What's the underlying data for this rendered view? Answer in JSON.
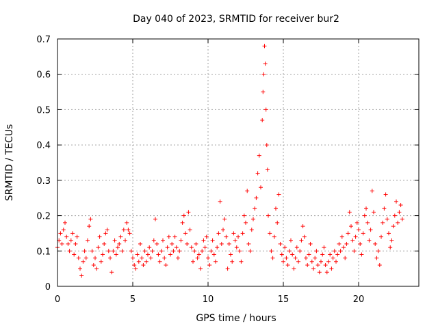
{
  "chart_data": {
    "type": "scatter",
    "title": "Day 040 of 2023, SRMTID for receiver bur2",
    "xlabel": "GPS time / hours",
    "ylabel": "SRMTID / TECUs",
    "xlim": [
      0,
      24
    ],
    "ylim": [
      0,
      0.7
    ],
    "xticks": [
      0,
      5,
      10,
      15,
      20
    ],
    "yticks": [
      0,
      0.1,
      0.2,
      0.3,
      0.4,
      0.5,
      0.6,
      0.7
    ],
    "xtick_labels": [
      "0",
      "5",
      "10",
      "15",
      "20"
    ],
    "ytick_labels": [
      "0",
      "0.1",
      "0.2",
      "0.3",
      "0.4",
      "0.5",
      "0.6",
      "0.7"
    ],
    "grid": true,
    "marker": "+",
    "color": "#ff0000",
    "series": [
      {
        "name": "SRMTID",
        "points": [
          [
            0.0,
            0.11
          ],
          [
            0.1,
            0.13
          ],
          [
            0.2,
            0.15
          ],
          [
            0.3,
            0.12
          ],
          [
            0.4,
            0.16
          ],
          [
            0.5,
            0.18
          ],
          [
            0.6,
            0.14
          ],
          [
            0.7,
            0.12
          ],
          [
            0.8,
            0.1
          ],
          [
            0.9,
            0.13
          ],
          [
            1.0,
            0.15
          ],
          [
            1.1,
            0.09
          ],
          [
            1.2,
            0.12
          ],
          [
            1.3,
            0.14
          ],
          [
            1.4,
            0.08
          ],
          [
            1.5,
            0.05
          ],
          [
            1.6,
            0.03
          ],
          [
            1.7,
            0.07
          ],
          [
            1.8,
            0.1
          ],
          [
            1.9,
            0.08
          ],
          [
            2.0,
            0.13
          ],
          [
            2.1,
            0.17
          ],
          [
            2.2,
            0.19
          ],
          [
            2.3,
            0.1
          ],
          [
            2.4,
            0.06
          ],
          [
            2.5,
            0.08
          ],
          [
            2.6,
            0.05
          ],
          [
            2.7,
            0.11
          ],
          [
            2.8,
            0.14
          ],
          [
            2.9,
            0.07
          ],
          [
            3.0,
            0.09
          ],
          [
            3.1,
            0.12
          ],
          [
            3.2,
            0.15
          ],
          [
            3.3,
            0.16
          ],
          [
            3.4,
            0.1
          ],
          [
            3.5,
            0.08
          ],
          [
            3.6,
            0.04
          ],
          [
            3.7,
            0.1
          ],
          [
            3.8,
            0.13
          ],
          [
            3.9,
            0.09
          ],
          [
            4.0,
            0.11
          ],
          [
            4.1,
            0.12
          ],
          [
            4.2,
            0.14
          ],
          [
            4.3,
            0.1
          ],
          [
            4.4,
            0.16
          ],
          [
            4.5,
            0.13
          ],
          [
            4.6,
            0.18
          ],
          [
            4.7,
            0.16
          ],
          [
            4.8,
            0.15
          ],
          [
            4.9,
            0.1
          ],
          [
            5.0,
            0.08
          ],
          [
            5.1,
            0.06
          ],
          [
            5.2,
            0.05
          ],
          [
            5.3,
            0.09
          ],
          [
            5.4,
            0.07
          ],
          [
            5.5,
            0.12
          ],
          [
            5.6,
            0.08
          ],
          [
            5.7,
            0.06
          ],
          [
            5.8,
            0.1
          ],
          [
            5.9,
            0.07
          ],
          [
            6.0,
            0.09
          ],
          [
            6.1,
            0.11
          ],
          [
            6.2,
            0.08
          ],
          [
            6.3,
            0.1
          ],
          [
            6.4,
            0.13
          ],
          [
            6.5,
            0.19
          ],
          [
            6.6,
            0.12
          ],
          [
            6.7,
            0.09
          ],
          [
            6.8,
            0.07
          ],
          [
            6.9,
            0.1
          ],
          [
            7.0,
            0.13
          ],
          [
            7.1,
            0.08
          ],
          [
            7.2,
            0.06
          ],
          [
            7.3,
            0.11
          ],
          [
            7.4,
            0.14
          ],
          [
            7.5,
            0.09
          ],
          [
            7.6,
            0.12
          ],
          [
            7.7,
            0.1
          ],
          [
            7.8,
            0.14
          ],
          [
            7.9,
            0.11
          ],
          [
            8.0,
            0.08
          ],
          [
            8.1,
            0.1
          ],
          [
            8.2,
            0.13
          ],
          [
            8.3,
            0.18
          ],
          [
            8.4,
            0.2
          ],
          [
            8.5,
            0.15
          ],
          [
            8.6,
            0.12
          ],
          [
            8.7,
            0.21
          ],
          [
            8.8,
            0.16
          ],
          [
            8.9,
            0.11
          ],
          [
            9.0,
            0.07
          ],
          [
            9.1,
            0.1
          ],
          [
            9.2,
            0.12
          ],
          [
            9.3,
            0.08
          ],
          [
            9.4,
            0.09
          ],
          [
            9.5,
            0.05
          ],
          [
            9.6,
            0.1
          ],
          [
            9.7,
            0.13
          ],
          [
            9.8,
            0.11
          ],
          [
            9.9,
            0.14
          ],
          [
            10.0,
            0.08
          ],
          [
            10.1,
            0.06
          ],
          [
            10.2,
            0.1
          ],
          [
            10.3,
            0.13
          ],
          [
            10.4,
            0.09
          ],
          [
            10.5,
            0.07
          ],
          [
            10.6,
            0.11
          ],
          [
            10.7,
            0.15
          ],
          [
            10.8,
            0.24
          ],
          [
            10.9,
            0.12
          ],
          [
            11.0,
            0.16
          ],
          [
            11.1,
            0.19
          ],
          [
            11.2,
            0.14
          ],
          [
            11.3,
            0.05
          ],
          [
            11.4,
            0.12
          ],
          [
            11.5,
            0.09
          ],
          [
            11.6,
            0.07
          ],
          [
            11.7,
            0.15
          ],
          [
            11.8,
            0.13
          ],
          [
            11.9,
            0.11
          ],
          [
            12.0,
            0.14
          ],
          [
            12.1,
            0.1
          ],
          [
            12.2,
            0.07
          ],
          [
            12.3,
            0.15
          ],
          [
            12.4,
            0.2
          ],
          [
            12.5,
            0.18
          ],
          [
            12.6,
            0.27
          ],
          [
            12.7,
            0.12
          ],
          [
            12.8,
            0.1
          ],
          [
            12.9,
            0.16
          ],
          [
            13.0,
            0.19
          ],
          [
            13.1,
            0.22
          ],
          [
            13.2,
            0.25
          ],
          [
            13.3,
            0.32
          ],
          [
            13.4,
            0.37
          ],
          [
            13.5,
            0.28
          ],
          [
            13.6,
            0.47
          ],
          [
            13.65,
            0.55
          ],
          [
            13.7,
            0.6
          ],
          [
            13.75,
            0.68
          ],
          [
            13.8,
            0.63
          ],
          [
            13.85,
            0.5
          ],
          [
            13.9,
            0.4
          ],
          [
            13.95,
            0.33
          ],
          [
            14.0,
            0.2
          ],
          [
            14.1,
            0.15
          ],
          [
            14.2,
            0.1
          ],
          [
            14.3,
            0.08
          ],
          [
            14.4,
            0.14
          ],
          [
            14.5,
            0.22
          ],
          [
            14.6,
            0.18
          ],
          [
            14.7,
            0.26
          ],
          [
            14.8,
            0.12
          ],
          [
            14.9,
            0.09
          ],
          [
            15.0,
            0.07
          ],
          [
            15.1,
            0.11
          ],
          [
            15.2,
            0.08
          ],
          [
            15.3,
            0.06
          ],
          [
            15.4,
            0.1
          ],
          [
            15.5,
            0.13
          ],
          [
            15.6,
            0.09
          ],
          [
            15.7,
            0.05
          ],
          [
            15.8,
            0.08
          ],
          [
            15.9,
            0.11
          ],
          [
            16.0,
            0.07
          ],
          [
            16.1,
            0.1
          ],
          [
            16.2,
            0.13
          ],
          [
            16.3,
            0.17
          ],
          [
            16.4,
            0.14
          ],
          [
            16.5,
            0.08
          ],
          [
            16.6,
            0.06
          ],
          [
            16.7,
            0.09
          ],
          [
            16.8,
            0.12
          ],
          [
            16.9,
            0.07
          ],
          [
            17.0,
            0.05
          ],
          [
            17.1,
            0.08
          ],
          [
            17.2,
            0.1
          ],
          [
            17.3,
            0.06
          ],
          [
            17.4,
            0.04
          ],
          [
            17.5,
            0.07
          ],
          [
            17.6,
            0.09
          ],
          [
            17.7,
            0.11
          ],
          [
            17.8,
            0.06
          ],
          [
            17.9,
            0.04
          ],
          [
            18.0,
            0.07
          ],
          [
            18.1,
            0.09
          ],
          [
            18.2,
            0.05
          ],
          [
            18.3,
            0.08
          ],
          [
            18.4,
            0.1
          ],
          [
            18.5,
            0.07
          ],
          [
            18.6,
            0.09
          ],
          [
            18.7,
            0.12
          ],
          [
            18.8,
            0.1
          ],
          [
            18.9,
            0.14
          ],
          [
            19.0,
            0.11
          ],
          [
            19.1,
            0.08
          ],
          [
            19.2,
            0.12
          ],
          [
            19.3,
            0.15
          ],
          [
            19.4,
            0.21
          ],
          [
            19.5,
            0.17
          ],
          [
            19.6,
            0.13
          ],
          [
            19.7,
            0.1
          ],
          [
            19.8,
            0.14
          ],
          [
            19.9,
            0.18
          ],
          [
            20.0,
            0.16
          ],
          [
            20.1,
            0.12
          ],
          [
            20.2,
            0.09
          ],
          [
            20.3,
            0.15
          ],
          [
            20.4,
            0.2
          ],
          [
            20.5,
            0.22
          ],
          [
            20.6,
            0.18
          ],
          [
            20.7,
            0.13
          ],
          [
            20.8,
            0.16
          ],
          [
            20.9,
            0.27
          ],
          [
            21.0,
            0.21
          ],
          [
            21.1,
            0.12
          ],
          [
            21.2,
            0.08
          ],
          [
            21.3,
            0.1
          ],
          [
            21.4,
            0.06
          ],
          [
            21.5,
            0.14
          ],
          [
            21.6,
            0.18
          ],
          [
            21.7,
            0.22
          ],
          [
            21.8,
            0.26
          ],
          [
            21.9,
            0.19
          ],
          [
            22.0,
            0.15
          ],
          [
            22.1,
            0.11
          ],
          [
            22.2,
            0.13
          ],
          [
            22.3,
            0.17
          ],
          [
            22.4,
            0.2
          ],
          [
            22.5,
            0.24
          ],
          [
            22.6,
            0.18
          ],
          [
            22.7,
            0.21
          ],
          [
            22.8,
            0.23
          ],
          [
            22.9,
            0.19
          ]
        ]
      }
    ]
  }
}
